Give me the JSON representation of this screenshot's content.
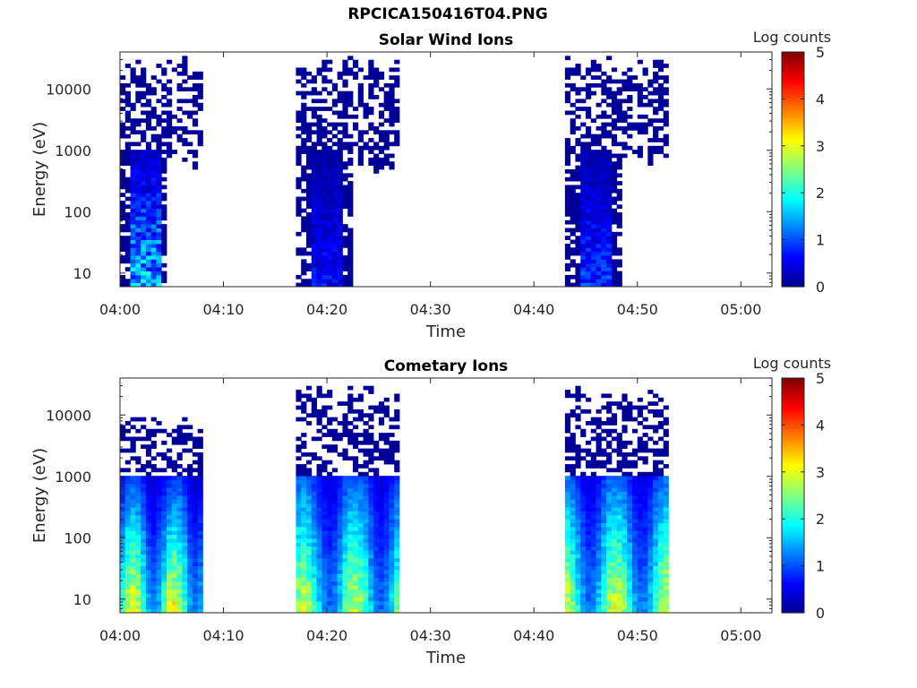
{
  "page_title": "RPCICA150416T04.PNG",
  "colors": {
    "colormap": [
      "#00008f",
      "#0000ff",
      "#0080ff",
      "#00ffff",
      "#80ff80",
      "#ffff00",
      "#ff8000",
      "#ff0000",
      "#800000"
    ],
    "axis": "#262626",
    "title": "#000000"
  },
  "chart_data": [
    {
      "type": "heatmap",
      "title": "Solar Wind Ions",
      "xlabel": "Time",
      "ylabel": "Energy (eV)",
      "x_ticks": [
        "04:00",
        "04:10",
        "04:20",
        "04:30",
        "04:40",
        "04:50",
        "05:00"
      ],
      "xlim_minutes": [
        0,
        63
      ],
      "y_ticks": [
        "10",
        "100",
        "1000",
        "10000"
      ],
      "y_scale": "log",
      "ylim": [
        6,
        40000
      ],
      "colorbar": {
        "label": "Log counts",
        "ticks": [
          "0",
          "1",
          "2",
          "3",
          "4",
          "5"
        ],
        "range": [
          0,
          5
        ]
      },
      "grid": false,
      "bursts": [
        {
          "start": "04:00",
          "end": "04:08",
          "max_energy": 35000,
          "peak_log_counts": 2.9
        },
        {
          "start": "04:17",
          "end": "04:27",
          "max_energy": 35000,
          "peak_log_counts": 1.2
        },
        {
          "start": "04:43",
          "end": "04:53",
          "max_energy": 35000,
          "peak_log_counts": 1.6
        }
      ]
    },
    {
      "type": "heatmap",
      "title": "Cometary Ions",
      "xlabel": "Time",
      "ylabel": "Energy (eV)",
      "x_ticks": [
        "04:00",
        "04:10",
        "04:20",
        "04:30",
        "04:40",
        "04:50",
        "05:00"
      ],
      "xlim_minutes": [
        0,
        63
      ],
      "y_ticks": [
        "10",
        "100",
        "1000",
        "10000"
      ],
      "y_scale": "log",
      "ylim": [
        6,
        40000
      ],
      "colorbar": {
        "label": "Log counts",
        "ticks": [
          "0",
          "1",
          "2",
          "3",
          "4",
          "5"
        ],
        "range": [
          0,
          5
        ]
      },
      "grid": false,
      "bursts": [
        {
          "start": "04:00",
          "end": "04:08",
          "max_energy": 10000,
          "peak_log_counts": 3.6
        },
        {
          "start": "04:17",
          "end": "04:27",
          "max_energy": 30000,
          "peak_log_counts": 3.3
        },
        {
          "start": "04:43",
          "end": "04:53",
          "max_energy": 30000,
          "peak_log_counts": 3.5
        }
      ]
    }
  ]
}
